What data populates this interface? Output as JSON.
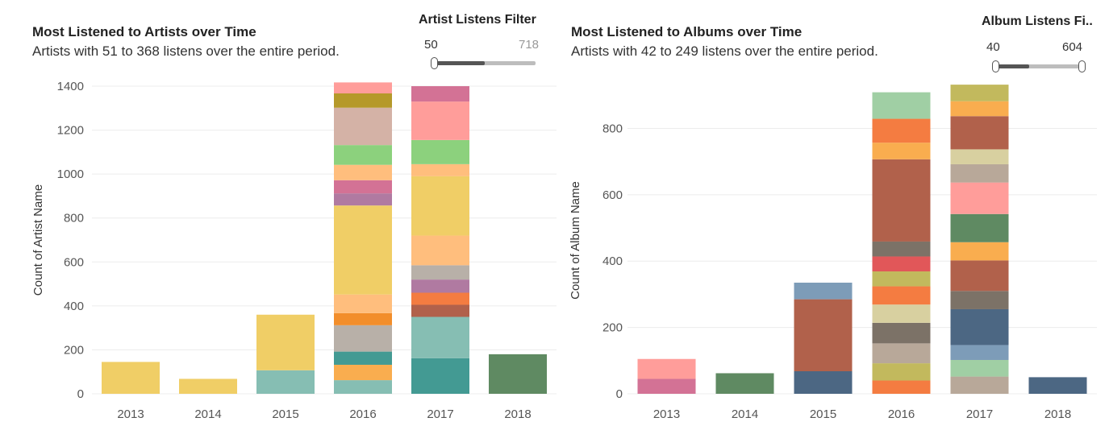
{
  "charts": [
    {
      "title": "Most Listened to Artists over Time",
      "subtitle": "Artists with  51 to 368 listens over the entire period.",
      "filter": {
        "label": "Artist Listens Filter",
        "min_label": "50",
        "max_label": "718",
        "min_fraction": 0.0,
        "fill_fraction": 0.5,
        "max_fraction": 1.0
      },
      "chart_data": {
        "type": "bar",
        "stacked": true,
        "ylabel": "Count of Artist Name",
        "xlabel": "",
        "ylim": [
          0,
          1400
        ],
        "yticks": [
          0,
          200,
          400,
          600,
          800,
          1000,
          1200,
          1400
        ],
        "categories": [
          "2013",
          "2014",
          "2015",
          "2016",
          "2017",
          "2018"
        ],
        "stacks": [
          [
            {
              "value": 145,
              "color": "#f0ce66"
            }
          ],
          [
            {
              "value": 68,
              "color": "#f0ce66"
            }
          ],
          [
            {
              "value": 107,
              "color": "#86beb3"
            },
            {
              "value": 253,
              "color": "#f0ce66"
            }
          ],
          [
            {
              "value": 62,
              "color": "#86beb3"
            },
            {
              "value": 70,
              "color": "#f9ad4f"
            },
            {
              "value": 60,
              "color": "#439a93"
            },
            {
              "value": 120,
              "color": "#b8b0a8"
            },
            {
              "value": 55,
              "color": "#f28e2b"
            },
            {
              "value": 85,
              "color": "#ffbe7d"
            },
            {
              "value": 405,
              "color": "#f0ce66"
            },
            {
              "value": 55,
              "color": "#b07aa1"
            },
            {
              "value": 60,
              "color": "#d37295"
            },
            {
              "value": 70,
              "color": "#ffbe7d"
            },
            {
              "value": 90,
              "color": "#8cd17d"
            },
            {
              "value": 170,
              "color": "#d4b2a6"
            },
            {
              "value": 65,
              "color": "#b5992a"
            },
            {
              "value": 50,
              "color": "#ff9d9a"
            }
          ],
          [
            {
              "value": 162,
              "color": "#439a93"
            },
            {
              "value": 188,
              "color": "#86beb3"
            },
            {
              "value": 55,
              "color": "#b1614b"
            },
            {
              "value": 55,
              "color": "#f47c41"
            },
            {
              "value": 60,
              "color": "#b07aa1"
            },
            {
              "value": 65,
              "color": "#b8b0a8"
            },
            {
              "value": 135,
              "color": "#ffbe7d"
            },
            {
              "value": 270,
              "color": "#f0ce66"
            },
            {
              "value": 55,
              "color": "#ffbe7d"
            },
            {
              "value": 110,
              "color": "#8cd17d"
            },
            {
              "value": 175,
              "color": "#ff9d9a"
            },
            {
              "value": 70,
              "color": "#d37295"
            }
          ],
          [
            {
              "value": 180,
              "color": "#5f8a62"
            }
          ]
        ]
      }
    },
    {
      "title": "Most Listened to Albums over Time",
      "subtitle": "Artists with  42 to 249 listens over the entire period.",
      "filter": {
        "label": "Album Listens Fi..",
        "min_label": "40",
        "max_label": "604",
        "min_fraction": 0.0,
        "fill_fraction": 0.4,
        "max_fraction": 1.0
      },
      "chart_data": {
        "type": "bar",
        "stacked": true,
        "ylabel": "Count of Album Name",
        "xlabel": "",
        "ylim": [
          0,
          925
        ],
        "yticks": [
          0,
          200,
          400,
          600,
          800
        ],
        "categories": [
          "2013",
          "2014",
          "2015",
          "2016",
          "2017",
          "2018"
        ],
        "stacks": [
          [
            {
              "value": 45,
              "color": "#d37295"
            },
            {
              "value": 60,
              "color": "#ff9d9a"
            }
          ],
          [
            {
              "value": 62,
              "color": "#5f8a62"
            }
          ],
          [
            {
              "value": 68,
              "color": "#4c6783"
            },
            {
              "value": 217,
              "color": "#b1614b"
            },
            {
              "value": 50,
              "color": "#7d9cb8"
            }
          ],
          [
            {
              "value": 40,
              "color": "#f47c41"
            },
            {
              "value": 52,
              "color": "#c2b95d"
            },
            {
              "value": 60,
              "color": "#b8a899"
            },
            {
              "value": 62,
              "color": "#7c7267"
            },
            {
              "value": 55,
              "color": "#d8d0a0"
            },
            {
              "value": 55,
              "color": "#f47c41"
            },
            {
              "value": 45,
              "color": "#c2b95d"
            },
            {
              "value": 45,
              "color": "#e15759"
            },
            {
              "value": 45,
              "color": "#7c7267"
            },
            {
              "value": 248,
              "color": "#b1614b"
            },
            {
              "value": 50,
              "color": "#f9ad4f"
            },
            {
              "value": 72,
              "color": "#f47c41"
            },
            {
              "value": 80,
              "color": "#a0cfa4"
            }
          ],
          [
            {
              "value": 52,
              "color": "#b8a899"
            },
            {
              "value": 50,
              "color": "#a0cfa4"
            },
            {
              "value": 45,
              "color": "#7d9cb8"
            },
            {
              "value": 108,
              "color": "#4c6783"
            },
            {
              "value": 55,
              "color": "#7c7267"
            },
            {
              "value": 92,
              "color": "#b1614b"
            },
            {
              "value": 55,
              "color": "#f9ad4f"
            },
            {
              "value": 85,
              "color": "#5f8a62"
            },
            {
              "value": 95,
              "color": "#ff9d9a"
            },
            {
              "value": 55,
              "color": "#b8a899"
            },
            {
              "value": 45,
              "color": "#d8d0a0"
            },
            {
              "value": 100,
              "color": "#b1614b"
            },
            {
              "value": 45,
              "color": "#f9ad4f"
            },
            {
              "value": 50,
              "color": "#c2b95d"
            }
          ],
          [
            {
              "value": 50,
              "color": "#4c6783"
            }
          ]
        ]
      }
    }
  ]
}
